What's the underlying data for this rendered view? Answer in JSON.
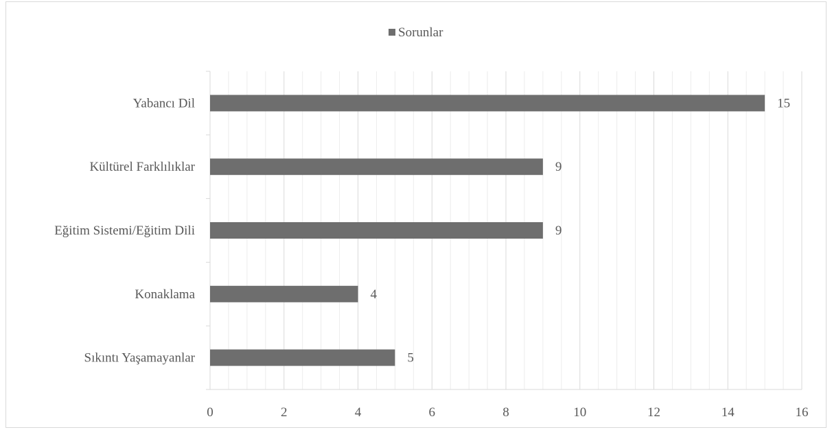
{
  "chart_data": {
    "type": "bar",
    "orientation": "horizontal",
    "categories": [
      "Yabancı Dil",
      "Kültürel Farklılıklar",
      "Eğitim Sistemi/Eğitim Dili",
      "Konaklama",
      "Sıkıntı Yaşamayanlar"
    ],
    "series": [
      {
        "name": "Sorunlar",
        "values": [
          15,
          9,
          9,
          4,
          5
        ],
        "color": "#6e6e6e"
      }
    ],
    "xlim": [
      0,
      16
    ],
    "x_ticks": [
      0,
      2,
      4,
      6,
      8,
      10,
      12,
      14,
      16
    ],
    "legend_position": "top-center",
    "grid": true,
    "data_labels": true
  }
}
